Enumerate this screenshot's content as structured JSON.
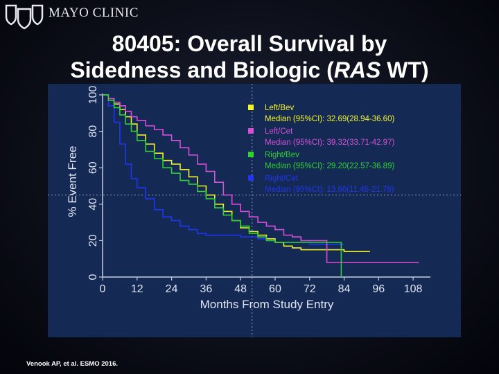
{
  "header": {
    "logo_text": "MAYO CLINIC",
    "logo_icon": "mayo-shields-icon"
  },
  "title": {
    "line1": "80405: Overall Survival by",
    "line2_prefix": "Sidedness and Biologic (",
    "line2_italic": "RAS",
    "line2_suffix": " WT)"
  },
  "citation": "Venook AP, et al.  ESMO 2016.",
  "colors": {
    "panel_bg": "#142a55",
    "axis": "#c6cce0",
    "left_bev": "#f2f22a",
    "left_cet": "#d64fd6",
    "right_bev": "#2fd12f",
    "right_cet": "#2035f0"
  },
  "chart_data": {
    "type": "line",
    "title": "80405: Overall Survival by Sidedness and Biologic (RAS WT)",
    "xlabel": "Months From Study Entry",
    "ylabel": "% Event Free",
    "xlim": [
      0,
      114
    ],
    "ylim": [
      0,
      100
    ],
    "xticks": [
      0,
      12,
      24,
      36,
      48,
      60,
      72,
      84,
      96,
      108
    ],
    "yticks": [
      0,
      20,
      40,
      60,
      80,
      100
    ],
    "reference_lines": {
      "y": 45,
      "x": 52
    },
    "legend_position": "top-right",
    "series": [
      {
        "name": "Left/Bev",
        "median_text": "Median (95%CI): 32.69(28.94-36.60)",
        "color": "#f2f22a",
        "points": [
          [
            0,
            100
          ],
          [
            2,
            98
          ],
          [
            4,
            95
          ],
          [
            6,
            92
          ],
          [
            8,
            88
          ],
          [
            10,
            84
          ],
          [
            12,
            78
          ],
          [
            15,
            73
          ],
          [
            18,
            68
          ],
          [
            21,
            64
          ],
          [
            24,
            62
          ],
          [
            27,
            59
          ],
          [
            30,
            55
          ],
          [
            33,
            50
          ],
          [
            36,
            45
          ],
          [
            39,
            40
          ],
          [
            42,
            36
          ],
          [
            45,
            31
          ],
          [
            48,
            27
          ],
          [
            51,
            25
          ],
          [
            54,
            23
          ],
          [
            57,
            21
          ],
          [
            60,
            19
          ],
          [
            63,
            17
          ],
          [
            66,
            16
          ],
          [
            69,
            15
          ],
          [
            72,
            15
          ],
          [
            78,
            15
          ],
          [
            84,
            14
          ],
          [
            90,
            14
          ],
          [
            93,
            14
          ]
        ]
      },
      {
        "name": "Left/Cet",
        "median_text": "Median (95%CI): 39.32(33.71-42.97)",
        "color": "#d64fd6",
        "points": [
          [
            0,
            100
          ],
          [
            2,
            98
          ],
          [
            4,
            96
          ],
          [
            6,
            94
          ],
          [
            8,
            91
          ],
          [
            10,
            88
          ],
          [
            12,
            86
          ],
          [
            15,
            83
          ],
          [
            18,
            81
          ],
          [
            21,
            78
          ],
          [
            24,
            75
          ],
          [
            27,
            71
          ],
          [
            30,
            67
          ],
          [
            33,
            62
          ],
          [
            36,
            58
          ],
          [
            39,
            52
          ],
          [
            42,
            45
          ],
          [
            45,
            40
          ],
          [
            48,
            36
          ],
          [
            51,
            33
          ],
          [
            54,
            30
          ],
          [
            57,
            28
          ],
          [
            60,
            26
          ],
          [
            63,
            23
          ],
          [
            66,
            22
          ],
          [
            69,
            20
          ],
          [
            72,
            20
          ],
          [
            78,
            19
          ],
          [
            78,
            8
          ],
          [
            90,
            8
          ],
          [
            100,
            8
          ],
          [
            110,
            8
          ]
        ]
      },
      {
        "name": "Right/Bev",
        "median_text": "Median (95%CI): 29.20(22.57-36.89)",
        "color": "#2fd12f",
        "points": [
          [
            0,
            100
          ],
          [
            2,
            97
          ],
          [
            4,
            93
          ],
          [
            6,
            89
          ],
          [
            8,
            84
          ],
          [
            10,
            80
          ],
          [
            12,
            75
          ],
          [
            15,
            69
          ],
          [
            18,
            65
          ],
          [
            21,
            60
          ],
          [
            24,
            57
          ],
          [
            27,
            53
          ],
          [
            30,
            51
          ],
          [
            33,
            47
          ],
          [
            36,
            43
          ],
          [
            39,
            38
          ],
          [
            42,
            34
          ],
          [
            45,
            31
          ],
          [
            48,
            28
          ],
          [
            51,
            24
          ],
          [
            54,
            22
          ],
          [
            57,
            20
          ],
          [
            60,
            19
          ],
          [
            72,
            19
          ],
          [
            83,
            19
          ],
          [
            83,
            0
          ]
        ]
      },
      {
        "name": "Right/Cet",
        "median_text": "Median (95%CI): 13.66(11.46-21.78)",
        "color": "#2035f0",
        "points": [
          [
            0,
            100
          ],
          [
            2,
            94
          ],
          [
            4,
            85
          ],
          [
            6,
            73
          ],
          [
            8,
            62
          ],
          [
            10,
            54
          ],
          [
            12,
            49
          ],
          [
            15,
            43
          ],
          [
            18,
            37
          ],
          [
            21,
            33
          ],
          [
            24,
            31
          ],
          [
            27,
            28
          ],
          [
            30,
            26
          ],
          [
            33,
            24
          ],
          [
            36,
            23
          ],
          [
            42,
            23
          ],
          [
            48,
            22
          ],
          [
            54,
            21
          ],
          [
            60,
            19
          ],
          [
            66,
            19
          ],
          [
            72,
            18
          ],
          [
            78,
            18
          ],
          [
            84,
            18
          ]
        ]
      }
    ]
  }
}
